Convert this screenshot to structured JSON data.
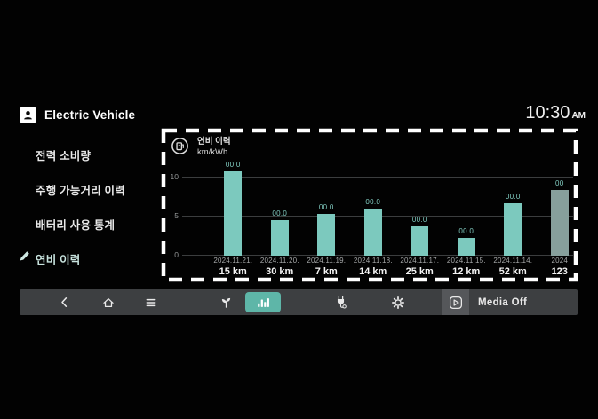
{
  "status": {
    "time": "10:30",
    "period": "AM"
  },
  "sidebar": {
    "title": "Electric Vehicle",
    "items": [
      {
        "label": "전력 소비량",
        "active": false
      },
      {
        "label": "주행 가능거리 이력",
        "active": false
      },
      {
        "label": "배터리 사용 통계",
        "active": false
      },
      {
        "label": "연비 이력",
        "active": true
      }
    ]
  },
  "panel": {
    "title": "연비 이력",
    "unit": "km/kWh"
  },
  "chart_data": {
    "type": "bar",
    "title": "연비 이력",
    "ylabel": "km/kWh",
    "ylim": [
      0,
      10
    ],
    "yticks": [
      "0",
      "5",
      "10"
    ],
    "grid": true,
    "legend_position": "none",
    "bar_color": "#7cc9be",
    "muted_bar_color": "#87a09c",
    "categories": [
      "2024.11.21.",
      "2024.11.20.",
      "2024.11.19.",
      "2024.11.18.",
      "2024.11.17.",
      "2024.11.15.",
      "2024.11.14.",
      "2024"
    ],
    "distances": [
      "15 km",
      "30 km",
      "7 km",
      "14 km",
      "25 km",
      "12 km",
      "52 km",
      "123"
    ],
    "value_labels": [
      "00.0",
      "00.0",
      "00.0",
      "00.0",
      "00.0",
      "00.0",
      "00.0",
      "00"
    ],
    "values": [
      10.8,
      4.6,
      5.3,
      6.0,
      3.8,
      2.3,
      6.7,
      8.4
    ],
    "last_bar_clipped": true
  },
  "navbar": {
    "accent": "#5eb6a8",
    "selected": "efficiency-chart",
    "media_label": "Media Off"
  }
}
